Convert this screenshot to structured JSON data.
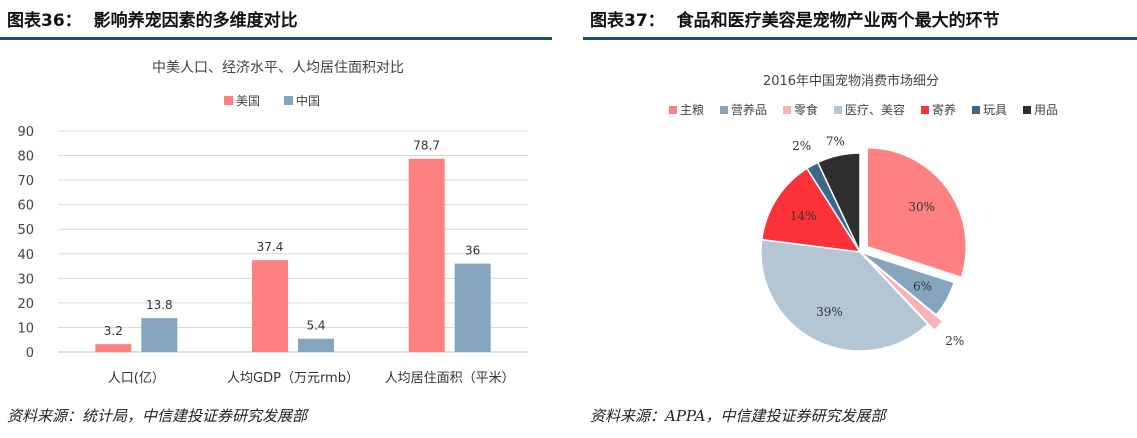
{
  "left": {
    "fig_number": "图表36：",
    "fig_title": "影响养宠因素的多维度对比",
    "source": "资料来源：统计局，中信建投证券研究发展部"
  },
  "right": {
    "fig_number": "图表37：",
    "fig_title": "食品和医疗美容是宠物产业两个最大的环节",
    "source": "资料来源：APPA，中信建投证券研究发展部"
  },
  "colors": {
    "us": "#fe8181",
    "cn": "#85a5bf",
    "grid": "#d9d9d9",
    "rule": "#1f4e79"
  },
  "chart_data": [
    {
      "type": "bar",
      "title": "中美人口、经济水平、人均居住面积对比",
      "categories": [
        "人口(亿）",
        "人均GDP（万元rmb）",
        "人均居住面积（平米）"
      ],
      "series": [
        {
          "name": "美国",
          "values": [
            3.2,
            37.4,
            78.7
          ],
          "labels": [
            "3.2",
            "37.4",
            "78.7"
          ]
        },
        {
          "name": "中国",
          "values": [
            13.8,
            5.4,
            36
          ],
          "labels": [
            "13.8",
            "5.4",
            "36"
          ]
        }
      ],
      "ylim": [
        0,
        90
      ],
      "yticks": [
        0,
        10,
        20,
        30,
        40,
        50,
        60,
        70,
        80,
        90
      ],
      "grid": true,
      "legend": "top-center"
    },
    {
      "type": "pie",
      "title": "2016年中国宠物消费市场细分",
      "labels": [
        "主粮",
        "营养品",
        "零食",
        "医疗、美容",
        "寄养",
        "玩具",
        "用品"
      ],
      "values": [
        30,
        6,
        2,
        39,
        14,
        2,
        7
      ],
      "value_labels": [
        "30%",
        "6%",
        "2%",
        "39%",
        "14%",
        "2%",
        "7%"
      ],
      "colors": [
        "#fe8181",
        "#85a5bf",
        "#f9b3b6",
        "#b4c6d5",
        "#fc3238",
        "#3c6788",
        "#2f2f2f"
      ],
      "exploded": [
        "主粮",
        "零食"
      ],
      "legend": "top"
    }
  ]
}
